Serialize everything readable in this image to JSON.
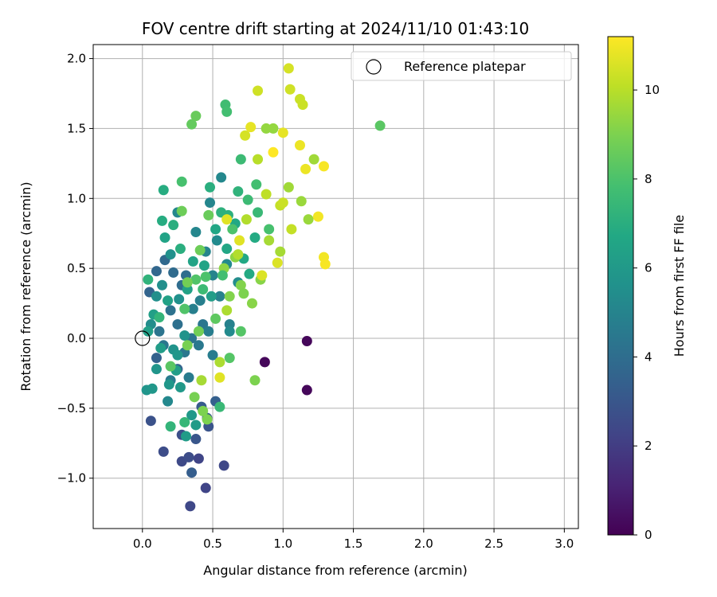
{
  "chart_data": {
    "type": "scatter",
    "title": "FOV centre drift starting at 2024/11/10 01:43:10",
    "xlabel": "Angular distance from reference (arcmin)",
    "ylabel": "Rotation from reference (arcmin)",
    "xlim": [
      -0.35,
      3.1
    ],
    "ylim": [
      -1.36,
      2.1
    ],
    "xticks": [
      0.0,
      0.5,
      1.0,
      1.5,
      2.0,
      2.5,
      3.0
    ],
    "xtick_labels": [
      "0.0",
      "0.5",
      "1.0",
      "1.5",
      "2.0",
      "2.5",
      "3.0"
    ],
    "yticks": [
      -1.0,
      -0.5,
      0.0,
      0.5,
      1.0,
      1.5,
      2.0
    ],
    "ytick_labels": [
      "−1.0",
      "−0.5",
      "0.0",
      "0.5",
      "1.0",
      "1.5",
      "2.0"
    ],
    "grid": true,
    "legend": {
      "position": "upper-right",
      "entries": [
        "Reference platepar"
      ]
    },
    "reference_point": {
      "x": 0.0,
      "y": 0.0
    },
    "colorbar": {
      "label": "Hours from first FF file",
      "colormap": "viridis",
      "range": [
        0,
        11.2
      ],
      "ticks": [
        0,
        2,
        4,
        6,
        8,
        10
      ],
      "tick_labels": [
        "0",
        "2",
        "4",
        "6",
        "8",
        "10"
      ]
    },
    "points": [
      {
        "x": 0.87,
        "y": -0.17,
        "h": 0.2
      },
      {
        "x": 1.17,
        "y": -0.02,
        "h": 0.2
      },
      {
        "x": 1.17,
        "y": -0.37,
        "h": 0.2
      },
      {
        "x": 0.34,
        "y": -1.2,
        "h": 2.4
      },
      {
        "x": 0.45,
        "y": -1.07,
        "h": 2.3
      },
      {
        "x": 0.58,
        "y": -0.91,
        "h": 2.4
      },
      {
        "x": 0.28,
        "y": -0.88,
        "h": 2.5
      },
      {
        "x": 0.4,
        "y": -0.86,
        "h": 2.3
      },
      {
        "x": 0.15,
        "y": -0.81,
        "h": 2.6
      },
      {
        "x": 0.33,
        "y": -0.85,
        "h": 2.6
      },
      {
        "x": 0.06,
        "y": -0.59,
        "h": 2.8
      },
      {
        "x": 0.28,
        "y": -0.69,
        "h": 2.7
      },
      {
        "x": 0.38,
        "y": -0.72,
        "h": 3.0
      },
      {
        "x": 0.47,
        "y": -0.63,
        "h": 2.9
      },
      {
        "x": 0.46,
        "y": -0.57,
        "h": 3.1
      },
      {
        "x": 0.35,
        "y": -0.96,
        "h": 3.3
      },
      {
        "x": 0.42,
        "y": -0.49,
        "h": 3.2
      },
      {
        "x": 0.52,
        "y": -0.45,
        "h": 3.4
      },
      {
        "x": 0.25,
        "y": -0.22,
        "h": 3.6
      },
      {
        "x": 0.1,
        "y": -0.14,
        "h": 3.5
      },
      {
        "x": 0.05,
        "y": 0.33,
        "h": 3.6
      },
      {
        "x": 0.1,
        "y": 0.48,
        "h": 3.7
      },
      {
        "x": 0.16,
        "y": 0.56,
        "h": 3.8
      },
      {
        "x": 0.22,
        "y": 0.47,
        "h": 3.9
      },
      {
        "x": 0.28,
        "y": 0.38,
        "h": 4.0
      },
      {
        "x": 0.31,
        "y": 0.45,
        "h": 4.0
      },
      {
        "x": 0.2,
        "y": 0.2,
        "h": 4.2
      },
      {
        "x": 0.25,
        "y": 0.1,
        "h": 4.1
      },
      {
        "x": 0.12,
        "y": 0.05,
        "h": 4.3
      },
      {
        "x": 0.35,
        "y": 0.0,
        "h": 4.3
      },
      {
        "x": 0.43,
        "y": 0.1,
        "h": 4.4
      },
      {
        "x": 0.15,
        "y": -0.05,
        "h": 4.4
      },
      {
        "x": 0.3,
        "y": -0.1,
        "h": 4.5
      },
      {
        "x": 0.4,
        "y": -0.05,
        "h": 4.5
      },
      {
        "x": 0.2,
        "y": -0.3,
        "h": 4.6
      },
      {
        "x": 0.33,
        "y": -0.28,
        "h": 4.6
      },
      {
        "x": 0.5,
        "y": -0.12,
        "h": 4.7
      },
      {
        "x": 0.47,
        "y": 0.05,
        "h": 4.7
      },
      {
        "x": 0.36,
        "y": 0.21,
        "h": 4.8
      },
      {
        "x": 0.41,
        "y": 0.27,
        "h": 4.8
      },
      {
        "x": 0.55,
        "y": 0.3,
        "h": 4.9
      },
      {
        "x": 0.62,
        "y": 0.1,
        "h": 4.9
      },
      {
        "x": 0.5,
        "y": 0.45,
        "h": 5.0
      },
      {
        "x": 0.45,
        "y": 0.62,
        "h": 5.0
      },
      {
        "x": 0.38,
        "y": 0.76,
        "h": 5.1
      },
      {
        "x": 0.48,
        "y": 0.97,
        "h": 5.1
      },
      {
        "x": 0.56,
        "y": 1.15,
        "h": 5.2
      },
      {
        "x": 0.25,
        "y": 0.9,
        "h": 5.2
      },
      {
        "x": 0.53,
        "y": 0.7,
        "h": 5.3
      },
      {
        "x": 0.6,
        "y": 0.53,
        "h": 5.3
      },
      {
        "x": 0.68,
        "y": 0.4,
        "h": 5.4
      },
      {
        "x": 0.06,
        "y": 0.1,
        "h": 5.4
      },
      {
        "x": 0.1,
        "y": 0.3,
        "h": 5.5
      },
      {
        "x": 0.14,
        "y": 0.38,
        "h": 5.5
      },
      {
        "x": 0.2,
        "y": 0.6,
        "h": 5.6
      },
      {
        "x": 0.26,
        "y": 0.28,
        "h": 5.6
      },
      {
        "x": 0.3,
        "y": 0.02,
        "h": 5.7
      },
      {
        "x": 0.22,
        "y": -0.08,
        "h": 5.7
      },
      {
        "x": 0.1,
        "y": -0.22,
        "h": 5.8
      },
      {
        "x": 0.03,
        "y": -0.37,
        "h": 5.8
      },
      {
        "x": 0.07,
        "y": -0.36,
        "h": 5.9
      },
      {
        "x": 0.19,
        "y": -0.33,
        "h": 5.9
      },
      {
        "x": 0.27,
        "y": -0.35,
        "h": 6.0
      },
      {
        "x": 0.35,
        "y": -0.55,
        "h": 6.0
      },
      {
        "x": 0.38,
        "y": -0.62,
        "h": 6.1
      },
      {
        "x": 0.31,
        "y": -0.7,
        "h": 6.1
      },
      {
        "x": 0.24,
        "y": -0.23,
        "h": 6.2
      },
      {
        "x": 0.13,
        "y": -0.07,
        "h": 6.2
      },
      {
        "x": 0.04,
        "y": 0.05,
        "h": 6.3
      },
      {
        "x": 0.08,
        "y": 0.17,
        "h": 6.3
      },
      {
        "x": 0.18,
        "y": 0.27,
        "h": 6.4
      },
      {
        "x": 0.32,
        "y": 0.35,
        "h": 6.4
      },
      {
        "x": 0.36,
        "y": 0.55,
        "h": 6.5
      },
      {
        "x": 0.44,
        "y": 0.52,
        "h": 6.5
      },
      {
        "x": 0.52,
        "y": 0.78,
        "h": 6.6
      },
      {
        "x": 0.6,
        "y": 0.64,
        "h": 6.6
      },
      {
        "x": 0.66,
        "y": 0.82,
        "h": 6.7
      },
      {
        "x": 0.72,
        "y": 0.57,
        "h": 6.7
      },
      {
        "x": 0.76,
        "y": 0.46,
        "h": 6.8
      },
      {
        "x": 0.8,
        "y": 0.72,
        "h": 6.8
      },
      {
        "x": 0.15,
        "y": 1.06,
        "h": 6.9
      },
      {
        "x": 0.14,
        "y": 0.84,
        "h": 6.9
      },
      {
        "x": 0.27,
        "y": 0.64,
        "h": 7.0
      },
      {
        "x": 0.22,
        "y": 0.81,
        "h": 7.0
      },
      {
        "x": 0.48,
        "y": 1.08,
        "h": 7.0
      },
      {
        "x": 0.56,
        "y": 0.9,
        "h": 7.1
      },
      {
        "x": 0.61,
        "y": 0.88,
        "h": 7.1
      },
      {
        "x": 0.68,
        "y": 1.05,
        "h": 7.2
      },
      {
        "x": 0.04,
        "y": 0.42,
        "h": 7.2
      },
      {
        "x": 0.12,
        "y": 0.15,
        "h": 7.3
      },
      {
        "x": 0.2,
        "y": -0.63,
        "h": 7.3
      },
      {
        "x": 0.3,
        "y": -0.6,
        "h": 7.4
      },
      {
        "x": 0.55,
        "y": -0.49,
        "h": 7.5
      },
      {
        "x": 0.82,
        "y": 0.9,
        "h": 7.5
      },
      {
        "x": 0.75,
        "y": 0.99,
        "h": 7.6
      },
      {
        "x": 0.7,
        "y": 1.28,
        "h": 7.6
      },
      {
        "x": 0.59,
        "y": 1.67,
        "h": 7.7
      },
      {
        "x": 0.6,
        "y": 1.62,
        "h": 7.8
      },
      {
        "x": 0.81,
        "y": 1.1,
        "h": 7.8
      },
      {
        "x": 0.28,
        "y": 1.12,
        "h": 7.9
      },
      {
        "x": 0.9,
        "y": 0.78,
        "h": 7.9
      },
      {
        "x": 0.64,
        "y": 0.78,
        "h": 8.0
      },
      {
        "x": 0.45,
        "y": 0.44,
        "h": 8.0
      },
      {
        "x": 0.38,
        "y": 0.42,
        "h": 8.1
      },
      {
        "x": 0.3,
        "y": 0.21,
        "h": 8.1
      },
      {
        "x": 0.7,
        "y": 0.05,
        "h": 8.2
      },
      {
        "x": 0.62,
        "y": -0.14,
        "h": 8.2
      },
      {
        "x": 0.2,
        "y": -0.2,
        "h": 8.3
      },
      {
        "x": 1.69,
        "y": 1.52,
        "h": 8.3
      },
      {
        "x": 0.35,
        "y": 1.53,
        "h": 8.5
      },
      {
        "x": 0.38,
        "y": 1.59,
        "h": 8.6
      },
      {
        "x": 0.47,
        "y": 0.88,
        "h": 8.6
      },
      {
        "x": 0.41,
        "y": 0.63,
        "h": 8.7
      },
      {
        "x": 0.28,
        "y": 0.91,
        "h": 8.7
      },
      {
        "x": 0.32,
        "y": 0.4,
        "h": 8.8
      },
      {
        "x": 0.4,
        "y": 0.05,
        "h": 8.8
      },
      {
        "x": 0.32,
        "y": -0.05,
        "h": 8.9
      },
      {
        "x": 0.37,
        "y": -0.42,
        "h": 8.9
      },
      {
        "x": 0.43,
        "y": -0.52,
        "h": 9.0
      },
      {
        "x": 0.46,
        "y": -0.58,
        "h": 9.0
      },
      {
        "x": 0.8,
        "y": -0.3,
        "h": 9.0
      },
      {
        "x": 0.62,
        "y": 0.3,
        "h": 9.1
      },
      {
        "x": 0.7,
        "y": 0.38,
        "h": 9.1
      },
      {
        "x": 0.78,
        "y": 0.25,
        "h": 9.2
      },
      {
        "x": 0.84,
        "y": 0.42,
        "h": 9.2
      },
      {
        "x": 0.66,
        "y": 0.58,
        "h": 9.3
      },
      {
        "x": 0.58,
        "y": 0.5,
        "h": 9.3
      },
      {
        "x": 0.93,
        "y": 1.5,
        "h": 9.4
      },
      {
        "x": 0.88,
        "y": 1.5,
        "h": 9.4
      },
      {
        "x": 1.13,
        "y": 0.98,
        "h": 9.5
      },
      {
        "x": 1.18,
        "y": 0.85,
        "h": 9.5
      },
      {
        "x": 1.22,
        "y": 1.28,
        "h": 9.6
      },
      {
        "x": 1.04,
        "y": 1.08,
        "h": 9.6
      },
      {
        "x": 0.98,
        "y": 0.62,
        "h": 9.7
      },
      {
        "x": 0.42,
        "y": -0.3,
        "h": 9.7
      },
      {
        "x": 0.55,
        "y": -0.17,
        "h": 9.8
      },
      {
        "x": 0.6,
        "y": 0.2,
        "h": 9.8
      },
      {
        "x": 0.68,
        "y": 0.6,
        "h": 9.9
      },
      {
        "x": 0.74,
        "y": 0.85,
        "h": 9.9
      },
      {
        "x": 0.82,
        "y": 1.28,
        "h": 10.0
      },
      {
        "x": 0.88,
        "y": 1.03,
        "h": 10.1
      },
      {
        "x": 0.98,
        "y": 0.95,
        "h": 10.2
      },
      {
        "x": 1.06,
        "y": 0.78,
        "h": 10.2
      },
      {
        "x": 1.14,
        "y": 1.67,
        "h": 10.3
      },
      {
        "x": 1.12,
        "y": 1.71,
        "h": 10.3
      },
      {
        "x": 1.05,
        "y": 1.78,
        "h": 10.4
      },
      {
        "x": 0.82,
        "y": 1.77,
        "h": 10.4
      },
      {
        "x": 1.04,
        "y": 1.93,
        "h": 10.5
      },
      {
        "x": 0.73,
        "y": 1.45,
        "h": 10.5
      },
      {
        "x": 0.85,
        "y": 0.45,
        "h": 10.6
      },
      {
        "x": 0.96,
        "y": 0.54,
        "h": 10.6
      },
      {
        "x": 0.55,
        "y": -0.28,
        "h": 10.7
      },
      {
        "x": 0.69,
        "y": 0.7,
        "h": 10.7
      },
      {
        "x": 0.77,
        "y": 1.51,
        "h": 10.8
      },
      {
        "x": 1.0,
        "y": 1.47,
        "h": 10.8
      },
      {
        "x": 1.12,
        "y": 1.38,
        "h": 10.9
      },
      {
        "x": 1.16,
        "y": 1.21,
        "h": 10.9
      },
      {
        "x": 1.25,
        "y": 0.87,
        "h": 11.0
      },
      {
        "x": 1.29,
        "y": 0.58,
        "h": 11.0
      },
      {
        "x": 1.3,
        "y": 0.53,
        "h": 11.1
      },
      {
        "x": 1.29,
        "y": 1.23,
        "h": 11.1
      },
      {
        "x": 0.93,
        "y": 1.33,
        "h": 11.2
      },
      {
        "x": 0.62,
        "y": 0.05,
        "h": 5.3
      },
      {
        "x": 0.49,
        "y": 0.3,
        "h": 6.2
      },
      {
        "x": 0.16,
        "y": 0.72,
        "h": 6.5
      },
      {
        "x": 0.43,
        "y": 0.35,
        "h": 7.6
      },
      {
        "x": 0.52,
        "y": 0.14,
        "h": 8.4
      },
      {
        "x": 0.72,
        "y": 0.32,
        "h": 9.0
      },
      {
        "x": 0.9,
        "y": 0.7,
        "h": 9.7
      },
      {
        "x": 1.0,
        "y": 0.97,
        "h": 10.3
      },
      {
        "x": 0.6,
        "y": 0.85,
        "h": 10.7
      },
      {
        "x": 0.57,
        "y": 0.45,
        "h": 7.8
      },
      {
        "x": 0.18,
        "y": -0.45,
        "h": 5.2
      },
      {
        "x": 0.25,
        "y": -0.12,
        "h": 5.9
      }
    ]
  }
}
